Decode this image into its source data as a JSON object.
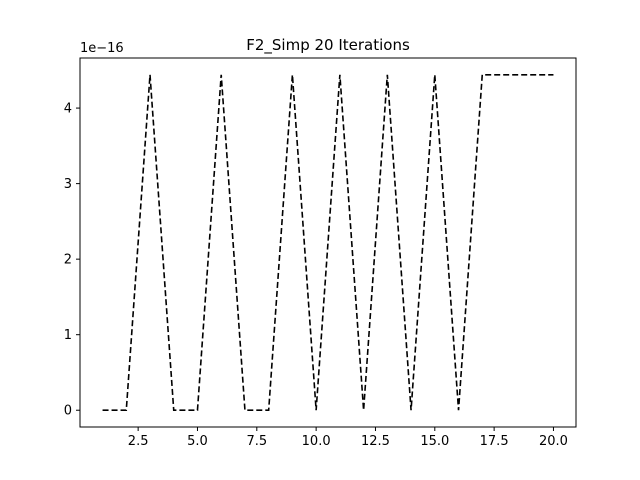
{
  "chart_data": {
    "type": "line",
    "title": "F2_Simp 20 Iterations",
    "xlabel": "",
    "ylabel": "",
    "y_offset_label": "1e−16",
    "xlim": [
      0.05,
      20.95
    ],
    "ylim": [
      -0.222,
      4.663
    ],
    "x_ticks": [
      2.5,
      5.0,
      7.5,
      10.0,
      12.5,
      15.0,
      17.5,
      20.0
    ],
    "x_tick_labels": [
      "2.5",
      "5.0",
      "7.5",
      "10.0",
      "12.5",
      "15.0",
      "17.5",
      "20.0"
    ],
    "y_ticks": [
      0,
      1,
      2,
      3,
      4
    ],
    "y_tick_labels": [
      "0",
      "1",
      "2",
      "3",
      "4"
    ],
    "grid": false,
    "series": [
      {
        "line_style": "dashed",
        "color": "#000000",
        "x": [
          1,
          2,
          3,
          4,
          5,
          6,
          7,
          8,
          9,
          10,
          11,
          12,
          13,
          14,
          15,
          16,
          17,
          18,
          19,
          20
        ],
        "y": [
          0,
          0,
          4.441,
          0,
          0,
          4.441,
          0,
          0,
          4.441,
          0,
          4.441,
          0,
          4.441,
          0,
          4.441,
          0,
          4.441,
          4.441,
          4.441,
          4.441
        ]
      }
    ]
  }
}
